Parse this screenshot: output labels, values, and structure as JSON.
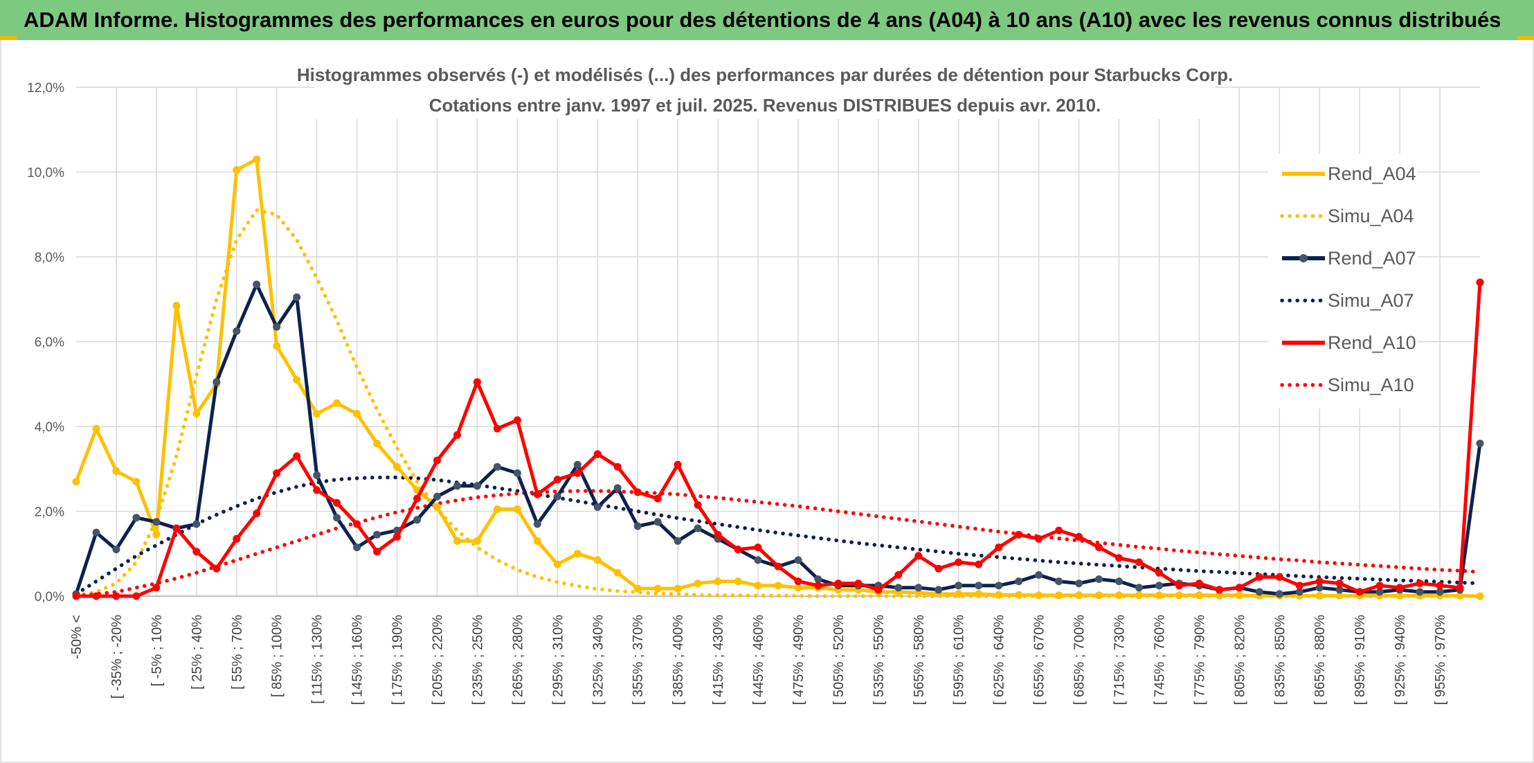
{
  "banner": {
    "title": "ADAM Informe. Histogrammes des performances en euros pour des détentions de 4 ans (A04) à 10 ans (A10) avec les revenus connus distribués"
  },
  "colors": {
    "banner_bg": "#7dc97f",
    "A04": "#ffc000",
    "A07": "#0d2150",
    "A10": "#ff0000",
    "grid": "#d9d9d9",
    "text": "#595959"
  },
  "chart_data": {
    "type": "line",
    "title": "Histogrammes observés (-) et modélisés (...) des performances par durées de détention pour Starbucks Corp.",
    "subtitle": "Cotations entre janv. 1997 et juil. 2025. Revenus DISTRIBUES depuis avr. 2010.",
    "ylim": [
      0,
      12
    ],
    "y_ticks": [
      "0,0%",
      "2,0%",
      "4,0%",
      "6,0%",
      "8,0%",
      "10,0%",
      "12,0%"
    ],
    "grid": true,
    "legend_position": "right",
    "x_tick_labels": [
      "-50% <",
      "[ -35% ; -20%",
      "[ -5% ; 10%",
      "[ 25% ; 40%",
      "[ 55% ; 70%",
      "[ 85% ; 100%",
      "[ 115% ; 130%",
      "[ 145% ; 160%",
      "[ 175% ; 190%",
      "[ 205% ; 220%",
      "[ 235% ; 250%",
      "[ 265% ; 280%",
      "[ 295% ; 310%",
      "[ 325% ; 340%",
      "[ 355% ; 370%",
      "[ 385% ; 400%",
      "[ 415% ; 430%",
      "[ 445% ; 460%",
      "[ 475% ; 490%",
      "[ 505% ; 520%",
      "[ 535% ; 550%",
      "[ 565% ; 580%",
      "[ 595% ; 610%",
      "[ 625% ; 640%",
      "[ 655% ; 670%",
      "[ 685% ; 700%",
      "[ 715% ; 730%",
      "[ 745% ; 760%",
      "[ 775% ; 790%",
      "[ 805% ; 820%",
      "[ 835% ; 850%",
      "[ 865% ; 880%",
      "[ 895% ; 910%",
      "[ 925% ; 940%",
      "[ 955% ; 970%"
    ],
    "series": [
      {
        "name": "Rend_A04",
        "style": "solid",
        "color": "#ffc000",
        "values": [
          2.7,
          3.95,
          2.95,
          2.7,
          1.45,
          6.85,
          4.3,
          5.0,
          10.05,
          10.3,
          5.9,
          5.1,
          4.3,
          4.55,
          4.3,
          3.6,
          3.05,
          2.5,
          2.1,
          1.3,
          1.3,
          2.05,
          2.05,
          1.3,
          0.75,
          1.0,
          0.85,
          0.55,
          0.18,
          0.18,
          0.18,
          0.3,
          0.35,
          0.35,
          0.25,
          0.25,
          0.2,
          0.2,
          0.15,
          0.15,
          0.1,
          0.1,
          0.08,
          0.05,
          0.05,
          0.05,
          0.03,
          0.03,
          0.02,
          0.02,
          0.02,
          0.02,
          0.02,
          0.02,
          0.02,
          0.02,
          0.02,
          0.02,
          0.02,
          0.01,
          0.01,
          0.01,
          0.01,
          0.01,
          0.01,
          0.01,
          0.01,
          0.01,
          0.01,
          0.01,
          0.0
        ]
      },
      {
        "name": "Simu_A04",
        "style": "dotted",
        "color": "#ffc000",
        "values": [
          0.02,
          0.1,
          0.3,
          0.8,
          1.8,
          3.3,
          5.2,
          7.0,
          8.4,
          9.1,
          9.0,
          8.4,
          7.5,
          6.5,
          5.4,
          4.4,
          3.5,
          2.7,
          2.05,
          1.55,
          1.15,
          0.85,
          0.62,
          0.45,
          0.33,
          0.24,
          0.17,
          0.12,
          0.09,
          0.06,
          0.05,
          0.03,
          0.02,
          0.02,
          0.01,
          0.01,
          0.01,
          0.0,
          0.0,
          0.0,
          0.0,
          0.0,
          0.0,
          0.0,
          0.0,
          0.0,
          0.0,
          0.0,
          0.0,
          0.0,
          0.0,
          0.0,
          0.0,
          0.0,
          0.0,
          0.0,
          0.0,
          0.0,
          0.0,
          0.0,
          0.0,
          0.0,
          0.0,
          0.0,
          0.0,
          0.0,
          0.0,
          0.0,
          0.0,
          0.0,
          0.0
        ]
      },
      {
        "name": "Rend_A07",
        "style": "solid",
        "color": "#0d2150",
        "values": [
          0.05,
          1.5,
          1.1,
          1.85,
          1.75,
          1.6,
          1.7,
          5.05,
          6.25,
          7.35,
          6.35,
          7.05,
          2.85,
          1.85,
          1.15,
          1.45,
          1.55,
          1.8,
          2.35,
          2.6,
          2.6,
          3.05,
          2.9,
          1.7,
          2.35,
          3.1,
          2.1,
          2.55,
          1.65,
          1.75,
          1.3,
          1.6,
          1.35,
          1.1,
          0.85,
          0.7,
          0.85,
          0.4,
          0.25,
          0.25,
          0.25,
          0.2,
          0.2,
          0.15,
          0.25,
          0.25,
          0.25,
          0.35,
          0.5,
          0.35,
          0.3,
          0.4,
          0.35,
          0.2,
          0.25,
          0.3,
          0.25,
          0.15,
          0.2,
          0.1,
          0.05,
          0.1,
          0.2,
          0.15,
          0.1,
          0.1,
          0.15,
          0.1,
          0.1,
          0.15,
          3.6
        ]
      },
      {
        "name": "Simu_A07",
        "style": "dotted",
        "color": "#0d2150",
        "values": [
          0.05,
          0.35,
          0.65,
          0.95,
          1.2,
          1.45,
          1.7,
          1.92,
          2.12,
          2.3,
          2.45,
          2.58,
          2.68,
          2.75,
          2.78,
          2.8,
          2.8,
          2.78,
          2.74,
          2.68,
          2.62,
          2.55,
          2.48,
          2.4,
          2.32,
          2.24,
          2.16,
          2.08,
          2.0,
          1.92,
          1.84,
          1.77,
          1.7,
          1.63,
          1.56,
          1.49,
          1.43,
          1.37,
          1.31,
          1.25,
          1.2,
          1.15,
          1.1,
          1.05,
          1.0,
          0.96,
          0.92,
          0.88,
          0.84,
          0.8,
          0.77,
          0.74,
          0.71,
          0.68,
          0.65,
          0.62,
          0.59,
          0.57,
          0.54,
          0.52,
          0.5,
          0.47,
          0.45,
          0.43,
          0.41,
          0.39,
          0.37,
          0.36,
          0.34,
          0.32,
          0.3
        ]
      },
      {
        "name": "Rend_A10",
        "style": "solid",
        "color": "#ff0000",
        "values": [
          0.0,
          0.0,
          0.0,
          0.0,
          0.2,
          1.6,
          1.05,
          0.65,
          1.35,
          1.95,
          2.9,
          3.3,
          2.5,
          2.2,
          1.7,
          1.05,
          1.4,
          2.3,
          3.2,
          3.8,
          5.05,
          3.95,
          4.15,
          2.4,
          2.75,
          2.9,
          3.35,
          3.05,
          2.45,
          2.3,
          3.1,
          2.15,
          1.45,
          1.1,
          1.15,
          0.7,
          0.35,
          0.25,
          0.3,
          0.3,
          0.15,
          0.5,
          0.95,
          0.65,
          0.8,
          0.75,
          1.15,
          1.45,
          1.35,
          1.55,
          1.4,
          1.15,
          0.9,
          0.8,
          0.55,
          0.25,
          0.3,
          0.15,
          0.2,
          0.45,
          0.45,
          0.25,
          0.35,
          0.3,
          0.1,
          0.25,
          0.2,
          0.3,
          0.25,
          0.2,
          7.4
        ]
      },
      {
        "name": "Simu_A10",
        "style": "dotted",
        "color": "#ff0000",
        "values": [
          0.0,
          0.05,
          0.1,
          0.2,
          0.3,
          0.42,
          0.55,
          0.7,
          0.85,
          1.0,
          1.15,
          1.3,
          1.45,
          1.6,
          1.73,
          1.86,
          1.98,
          2.08,
          2.18,
          2.26,
          2.33,
          2.38,
          2.42,
          2.45,
          2.47,
          2.48,
          2.48,
          2.47,
          2.45,
          2.43,
          2.4,
          2.36,
          2.32,
          2.27,
          2.22,
          2.17,
          2.12,
          2.06,
          2.0,
          1.94,
          1.88,
          1.82,
          1.76,
          1.7,
          1.64,
          1.58,
          1.52,
          1.47,
          1.41,
          1.36,
          1.31,
          1.26,
          1.21,
          1.16,
          1.12,
          1.07,
          1.03,
          0.99,
          0.95,
          0.91,
          0.87,
          0.84,
          0.8,
          0.77,
          0.74,
          0.71,
          0.68,
          0.65,
          0.62,
          0.6,
          0.57
        ]
      }
    ]
  }
}
